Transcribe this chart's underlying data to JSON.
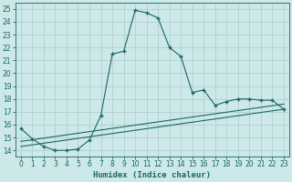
{
  "xlabel": "Humidex (Indice chaleur)",
  "bg_color": "#cde8e8",
  "grid_color": "#b0d0d0",
  "line_color": "#1a6666",
  "xlim": [
    -0.5,
    23.5
  ],
  "ylim": [
    13.5,
    25.5
  ],
  "xticks": [
    0,
    1,
    2,
    3,
    4,
    5,
    6,
    7,
    8,
    9,
    10,
    11,
    12,
    13,
    14,
    15,
    16,
    17,
    18,
    19,
    20,
    21,
    22,
    23
  ],
  "yticks": [
    14,
    15,
    16,
    17,
    18,
    19,
    20,
    21,
    22,
    23,
    24,
    25
  ],
  "curve_x": [
    0,
    1,
    2,
    3,
    4,
    5,
    6,
    7,
    8,
    9,
    10,
    11,
    12,
    13,
    14,
    15,
    16,
    17,
    18,
    19,
    20,
    21,
    22,
    23
  ],
  "curve_y": [
    15.7,
    14.9,
    14.3,
    14.0,
    14.0,
    14.1,
    14.8,
    16.7,
    21.5,
    21.7,
    24.9,
    24.7,
    24.3,
    22.0,
    21.3,
    18.5,
    18.7,
    17.5,
    17.8,
    18.0,
    18.0,
    17.9,
    17.9,
    17.2
  ],
  "line1_x": [
    0,
    23
  ],
  "line1_y": [
    14.3,
    17.2
  ],
  "line2_x": [
    0,
    23
  ],
  "line2_y": [
    14.7,
    17.6
  ],
  "marker_size": 3.0
}
